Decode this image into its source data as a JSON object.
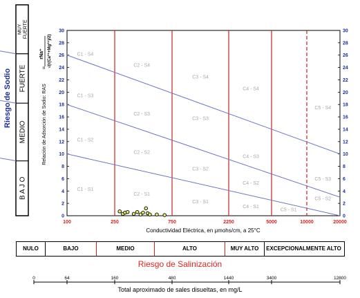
{
  "sodium_risk_title": "Riesgo de Sodio",
  "sodium_classes": [
    {
      "label": "MUY FUERTE",
      "from": 26,
      "to": 30
    },
    {
      "label": "FUERTE",
      "from": 18,
      "to": 26
    },
    {
      "label": "MEDIO",
      "from": 10,
      "to": 18
    },
    {
      "label": "B A J O",
      "from": 0,
      "to": 10
    }
  ],
  "salinity_risk_title": "Riesgo de Salinización",
  "salinity_classes": [
    "NULO",
    "BAJO",
    "MEDIO",
    "ALTO",
    "MUY ALTO",
    "EXCEPCIONALMENTE ALTO"
  ],
  "tds_axis": {
    "label": "Total aproximado de sales disueltas, en mg/L",
    "ticks": [
      "0",
      "64",
      "160",
      "480",
      "1440",
      "3400",
      "12800"
    ]
  },
  "chart_data": {
    "type": "scatter",
    "xlabel": "Conductividad Eléctrica, en μmohs/cm, a 25°C",
    "ylabel_prefix": "Relación de Adsorción de Sodio: RAS",
    "ylabel_formula": {
      "equals": "=",
      "numerator": "rNa⁺",
      "denominator": "√(r(Ca²⁺+Mg²⁺)/2)"
    },
    "x_ticks": [
      "100",
      "250",
      "750",
      "2250",
      "5000",
      "10000",
      "20000"
    ],
    "y_ticks": [
      "0",
      "2",
      "4",
      "6",
      "8",
      "10",
      "12",
      "14",
      "16",
      "18",
      "20",
      "22",
      "24",
      "26",
      "28",
      "30"
    ],
    "xlim": [
      100,
      20000
    ],
    "ylim": [
      0,
      30
    ],
    "boundary_lines": [
      {
        "y_at_100": 26,
        "y_at_20000": 10
      },
      {
        "y_at_100": 18,
        "y_at_20000": 3
      },
      {
        "y_at_100": 10,
        "y_at_20000": 0
      }
    ],
    "salinity_dividers": [
      {
        "x": 250,
        "style": "solid"
      },
      {
        "x": 750,
        "style": "solid"
      },
      {
        "x": 2250,
        "style": "solid"
      },
      {
        "x": 5000,
        "style": "solid"
      },
      {
        "x": 10000,
        "style": "dashed"
      }
    ],
    "zone_labels": [
      {
        "text": "C1 - S4",
        "x": 142,
        "y": 26.2
      },
      {
        "text": "C1 - S3",
        "x": 142,
        "y": 19.5
      },
      {
        "text": "C1 - S2",
        "x": 142,
        "y": 12.3
      },
      {
        "text": "C1 - S1",
        "x": 142,
        "y": 4.3
      },
      {
        "text": "C2 - S4",
        "x": 420,
        "y": 24.4
      },
      {
        "text": "C2 - S3",
        "x": 420,
        "y": 16.5
      },
      {
        "text": "C2 - S2",
        "x": 420,
        "y": 10.3
      },
      {
        "text": "C2 - S1",
        "x": 420,
        "y": 3.5
      },
      {
        "text": "C3 - S4",
        "x": 1300,
        "y": 22.5
      },
      {
        "text": "C3 - S3",
        "x": 1300,
        "y": 15.8
      },
      {
        "text": "C3 - S2",
        "x": 1300,
        "y": 7.6
      },
      {
        "text": "C3 - S1",
        "x": 1300,
        "y": 2.3
      },
      {
        "text": "C4 - S4",
        "x": 3400,
        "y": 20.6
      },
      {
        "text": "C4 - S3",
        "x": 3400,
        "y": 9.6
      },
      {
        "text": "C4 - S2",
        "x": 3400,
        "y": 5.3
      },
      {
        "text": "C4 - S1",
        "x": 3400,
        "y": 1.5
      },
      {
        "text": "C5 - S4",
        "x": 14000,
        "y": 17.5
      },
      {
        "text": "C5 - S3",
        "x": 14000,
        "y": 6.0
      },
      {
        "text": "C5 - S2",
        "x": 14000,
        "y": 2.8
      },
      {
        "text": "C5 - S1",
        "x": 7000,
        "y": 1.0
      }
    ],
    "samples": [
      {
        "x": 275,
        "y": 0.7
      },
      {
        "x": 292,
        "y": 0.3
      },
      {
        "x": 305,
        "y": 0.5
      },
      {
        "x": 320,
        "y": 0.6
      },
      {
        "x": 360,
        "y": 0.3
      },
      {
        "x": 385,
        "y": 0.6
      },
      {
        "x": 410,
        "y": 0.2
      },
      {
        "x": 430,
        "y": 0.5
      },
      {
        "x": 455,
        "y": 1.2
      },
      {
        "x": 470,
        "y": 0.4
      },
      {
        "x": 490,
        "y": 0.2
      },
      {
        "x": 560,
        "y": 0.2
      },
      {
        "x": 650,
        "y": 0.1
      }
    ],
    "colors": {
      "boundary": "#6a74c8",
      "divider": "#d21f1f",
      "zone_label": "#a8a8a8",
      "x_tick": "#d21f1f",
      "y_tick": "#1e2e99",
      "sample_fill": "#e8ea6e"
    }
  }
}
